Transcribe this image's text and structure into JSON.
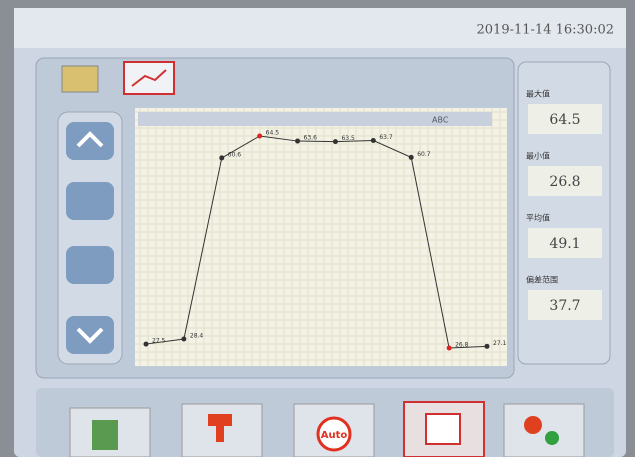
{
  "header": {
    "timestamp": "2019-11-14 16:30:02"
  },
  "chart_data": {
    "type": "line",
    "series": [
      {
        "name": "ABC",
        "color": "#333333",
        "values": [
          27.5,
          28.4,
          60.6,
          64.5,
          63.6,
          63.5,
          63.7,
          60.7,
          26.8,
          27.1
        ]
      }
    ],
    "highlight_color": "#e02424",
    "grid": true
  },
  "stats": [
    {
      "label": "最大值",
      "value": 64.5
    },
    {
      "label": "最小值",
      "value": 26.8
    },
    {
      "label": "平均值",
      "value": 49.1
    },
    {
      "label": "偏差范围",
      "value": 37.7
    }
  ],
  "toolbar": {
    "auto_label": "Auto"
  }
}
